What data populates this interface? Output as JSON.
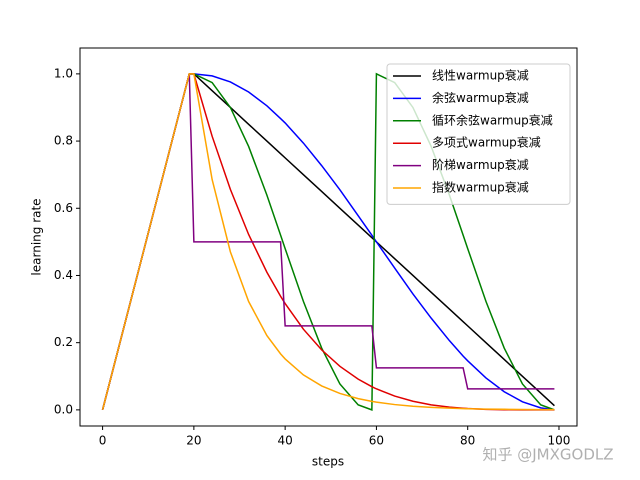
{
  "chart_data": {
    "type": "line",
    "xlabel": "steps",
    "ylabel": "learning rate",
    "annotation": "知乎 @JMXGODLZ",
    "x": [
      0,
      19,
      20,
      24,
      28,
      32,
      36,
      39,
      40,
      44,
      48,
      52,
      56,
      59,
      60,
      64,
      68,
      72,
      76,
      79,
      80,
      84,
      88,
      92,
      96,
      99
    ],
    "series": [
      {
        "name": "线性warmup衰减",
        "color": "#000000",
        "values": [
          0,
          1,
          1,
          0.95,
          0.9,
          0.85,
          0.8,
          0.7625,
          0.75,
          0.7,
          0.65,
          0.6,
          0.55,
          0.5125,
          0.5,
          0.45,
          0.4,
          0.35,
          0.3,
          0.2625,
          0.25,
          0.2,
          0.15,
          0.1,
          0.05,
          0.0125
        ]
      },
      {
        "name": "余弦warmup衰减",
        "color": "#0000ff",
        "values": [
          0,
          1,
          1,
          0.994,
          0.976,
          0.946,
          0.905,
          0.867,
          0.854,
          0.794,
          0.727,
          0.655,
          0.578,
          0.52,
          0.5,
          0.422,
          0.345,
          0.273,
          0.206,
          0.16,
          0.146,
          0.095,
          0.054,
          0.024,
          0.006,
          0
        ]
      },
      {
        "name": "循环余弦warmup衰减",
        "color": "#008000",
        "values": [
          0,
          1,
          1,
          0.974,
          0.9,
          0.784,
          0.639,
          0.52,
          0.48,
          0.323,
          0.184,
          0.077,
          0.015,
          0,
          1,
          0.974,
          0.9,
          0.784,
          0.639,
          0.52,
          0.48,
          0.323,
          0.184,
          0.077,
          0.015,
          0
        ]
      },
      {
        "name": "多项式warmup衰减",
        "color": "#e00000",
        "values": [
          0,
          1,
          1,
          0.8145,
          0.6561,
          0.522,
          0.4096,
          0.338,
          0.3164,
          0.2401,
          0.1785,
          0.1296,
          0.0915,
          0.069,
          0.0625,
          0.041,
          0.0256,
          0.015,
          0.0081,
          0.0048,
          0.0039,
          0.0016,
          0.0005,
          0.0001,
          0,
          0
        ]
      },
      {
        "name": "阶梯warmup衰减",
        "color": "#800080",
        "values": [
          0,
          1,
          0.5,
          0.5,
          0.5,
          0.5,
          0.5,
          0.5,
          0.25,
          0.25,
          0.25,
          0.25,
          0.25,
          0.25,
          0.125,
          0.125,
          0.125,
          0.125,
          0.125,
          0.125,
          0.0625,
          0.0625,
          0.0625,
          0.0625,
          0.0625,
          0.0625
        ]
      },
      {
        "name": "指数warmup衰减",
        "color": "#ffa500",
        "values": [
          0,
          1,
          1,
          0.6857,
          0.4703,
          0.3225,
          0.2211,
          0.1667,
          0.1516,
          0.104,
          0.0713,
          0.0489,
          0.0335,
          0.0253,
          0.023,
          0.0158,
          0.0108,
          0.0074,
          0.0051,
          0.0038,
          0.0035,
          0.0024,
          0.0017,
          0.0011,
          0.0008,
          0.0006
        ]
      }
    ],
    "xlim": [
      -4.95,
      103.95
    ],
    "ylim": [
      -0.048,
      1.077
    ],
    "xticks": [
      0,
      20,
      40,
      60,
      80,
      100
    ],
    "yticks": [
      {
        "value": 0,
        "label": "0.0"
      },
      0.2,
      0.4,
      0.6,
      0.8,
      {
        "value": 1,
        "label": "1.0"
      }
    ],
    "grid": false,
    "legend": "upper right"
  }
}
